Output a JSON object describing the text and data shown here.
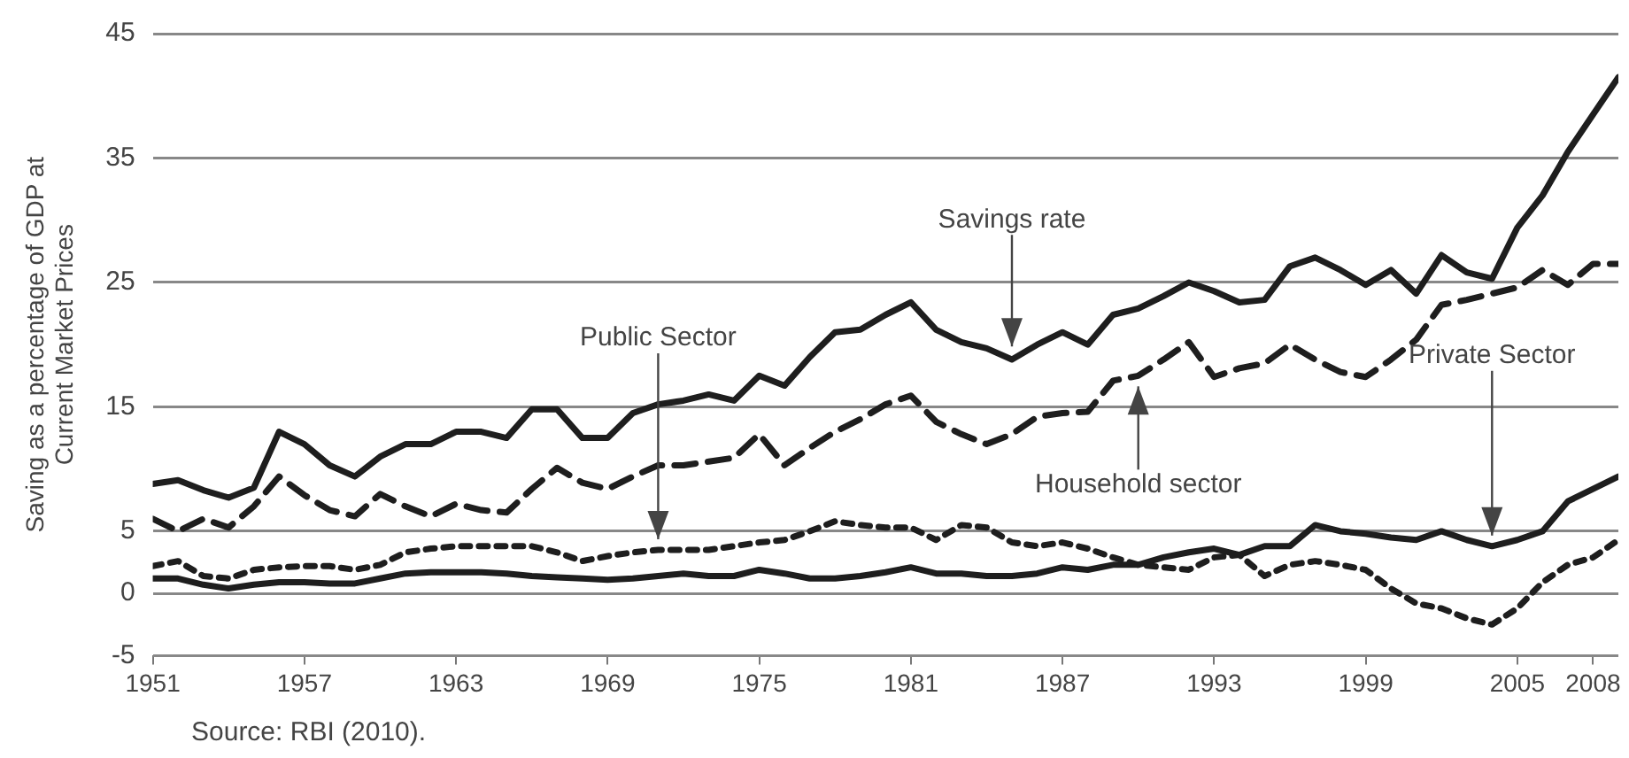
{
  "chart_data": {
    "type": "line",
    "ylabel": "Saving as a percentage of GDP at\nCurrent Market Prices",
    "x": [
      1951,
      1952,
      1953,
      1954,
      1955,
      1956,
      1957,
      1958,
      1959,
      1960,
      1961,
      1962,
      1963,
      1964,
      1965,
      1966,
      1967,
      1968,
      1969,
      1970,
      1971,
      1972,
      1973,
      1974,
      1975,
      1976,
      1977,
      1978,
      1979,
      1980,
      1981,
      1982,
      1983,
      1984,
      1985,
      1986,
      1987,
      1988,
      1989,
      1990,
      1991,
      1992,
      1993,
      1994,
      1995,
      1996,
      1997,
      1998,
      1999,
      2000,
      2001,
      2002,
      2003,
      2004,
      2005,
      2006,
      2007,
      2008,
      2009
    ],
    "series": [
      {
        "color": "#1e1e1e",
        "line_style": "solid",
        "values": [
          8.8,
          9.1,
          8.3,
          7.7,
          8.5,
          13,
          12,
          10.3,
          9.4,
          11,
          12,
          12,
          13,
          13,
          12.5,
          14.8,
          14.8,
          12.5,
          12.5,
          14.5,
          15.2,
          15.5,
          16,
          15.5,
          17.5,
          16.7,
          19,
          21,
          21.2,
          22.4,
          23.4,
          21.2,
          20.2,
          19.7,
          18.8,
          20,
          21,
          20,
          22.4,
          22.9,
          23.9,
          25,
          24.3,
          23.4,
          23.6,
          26.3,
          27,
          26,
          24.8,
          26,
          24.1,
          27.2,
          25.8,
          25.3,
          29.4,
          32,
          35.5,
          38.5,
          41.5
        ]
      },
      {
        "color": "#1e1e1e",
        "line_style": "dashed",
        "values": [
          6,
          5,
          6,
          5.3,
          7,
          9.4,
          7.9,
          6.7,
          6.2,
          8,
          7,
          6.2,
          7.2,
          6.7,
          6.5,
          8.4,
          10.1,
          8.9,
          8.4,
          9.4,
          10.3,
          10.3,
          10.6,
          10.9,
          12.8,
          10.3,
          11.7,
          13,
          14,
          15.2,
          15.9,
          13.8,
          12.8,
          12,
          12.8,
          14.2,
          14.5,
          14.6,
          17.1,
          17.5,
          18.8,
          20.2,
          17.4,
          18.1,
          18.5,
          20,
          18.8,
          17.8,
          17.4,
          18.8,
          20.4,
          23.2,
          23.6,
          24.1,
          24.6,
          26,
          24.8,
          26.5,
          26.5
        ]
      },
      {
        "color": "#1e1e1e",
        "line_style": "dotted",
        "values": [
          2.2,
          2.6,
          1.4,
          1.2,
          1.9,
          2.1,
          2.2,
          2.2,
          1.9,
          2.3,
          3.3,
          3.6,
          3.8,
          3.8,
          3.8,
          3.8,
          3.3,
          2.6,
          3,
          3.3,
          3.5,
          3.5,
          3.5,
          3.8,
          4.1,
          4.3,
          5,
          5.8,
          5.5,
          5.3,
          5.3,
          4.3,
          5.5,
          5.3,
          4.1,
          3.8,
          4.1,
          3.6,
          2.9,
          2.3,
          2.1,
          1.9,
          2.9,
          3.1,
          1.4,
          2.3,
          2.6,
          2.3,
          1.9,
          0.4,
          -0.8,
          -1.2,
          -2,
          -2.5,
          -1.2,
          0.9,
          2.3,
          2.9,
          4.3
        ]
      },
      {
        "color": "#1e1e1e",
        "line_style": "solid",
        "values": [
          1.2,
          1.2,
          0.7,
          0.4,
          0.7,
          0.9,
          0.9,
          0.8,
          0.8,
          1.2,
          1.6,
          1.7,
          1.7,
          1.7,
          1.6,
          1.4,
          1.3,
          1.2,
          1.1,
          1.2,
          1.4,
          1.6,
          1.4,
          1.4,
          1.9,
          1.6,
          1.2,
          1.2,
          1.4,
          1.7,
          2.1,
          1.6,
          1.6,
          1.4,
          1.4,
          1.6,
          2.1,
          1.9,
          2.3,
          2.3,
          2.9,
          3.3,
          3.6,
          3.1,
          3.8,
          3.8,
          5.5,
          5,
          4.8,
          4.5,
          4.3,
          5,
          4.3,
          3.8,
          4.3,
          5,
          7.4,
          8.4,
          9.4
        ]
      }
    ],
    "xlim": [
      1951,
      2009
    ],
    "xticks": [
      1951,
      1957,
      1963,
      1969,
      1975,
      1981,
      1987,
      1993,
      1999,
      2005,
      2008
    ],
    "ylim": [
      -5,
      45
    ],
    "yticks": [
      -5,
      0,
      5,
      15,
      25,
      35,
      45
    ],
    "grid": "y",
    "legend": false,
    "marker": "none",
    "annotations": [
      {
        "text": "Savings rate",
        "x": 1985,
        "y": 19
      },
      {
        "text": "Public Sector",
        "x": 1971,
        "y": 3.5
      },
      {
        "text": "Household sector",
        "x": 1990,
        "y": 17.5
      },
      {
        "text": "Private Sector",
        "x": 2004,
        "y": 3.8
      },
      "Source: RBI (2010)."
    ]
  }
}
